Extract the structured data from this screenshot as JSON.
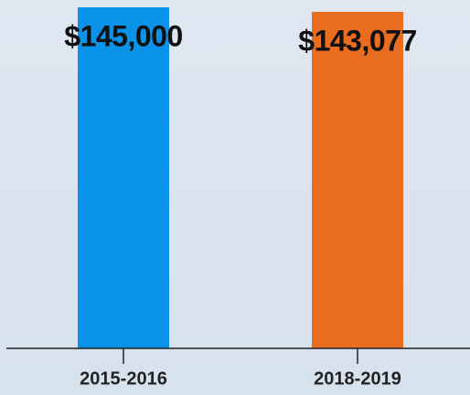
{
  "chart_data": {
    "type": "bar",
    "categories": [
      "2015-2016",
      "2018-2019"
    ],
    "values": [
      145000,
      143077
    ],
    "value_labels": [
      "$145,000",
      "$143,077"
    ],
    "colors": [
      "#0b93e9",
      "#e96c1f"
    ]
  }
}
